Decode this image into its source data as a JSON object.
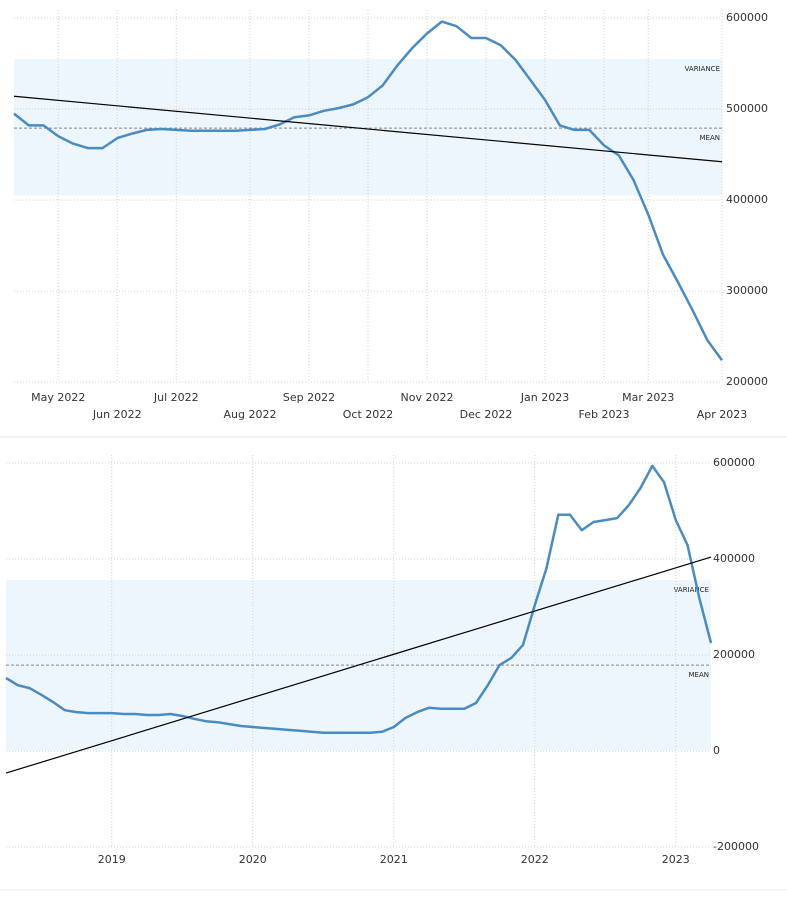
{
  "chart_data": [
    {
      "type": "line",
      "categories": [
        null,
        null,
        null,
        "May 2022",
        null,
        null,
        null,
        "Jun 2022",
        null,
        null,
        null,
        "Jul 2022",
        null,
        null,
        null,
        null,
        "Aug 2022",
        null,
        null,
        null,
        "Sep 2022",
        null,
        null,
        null,
        "Oct 2022",
        null,
        null,
        null,
        "Nov 2022",
        null,
        null,
        null,
        "Dec 2022",
        null,
        null,
        null,
        "Jan 2023",
        null,
        null,
        null,
        "Feb 2023",
        null,
        null,
        "Mar 2023",
        null,
        null,
        null,
        null,
        "Apr 2023"
      ],
      "values": [
        495000,
        482000,
        482000,
        470000,
        462000,
        457000,
        457000,
        468000,
        473000,
        477000,
        478000,
        477000,
        476000,
        476000,
        476000,
        476000,
        477000,
        478000,
        483000,
        491000,
        493000,
        498000,
        501000,
        505000,
        513000,
        526000,
        548000,
        567000,
        583000,
        596000,
        591000,
        578000,
        578000,
        570000,
        554000,
        532000,
        510000,
        482000,
        477000,
        477000,
        460000,
        449000,
        422000,
        384000,
        340000,
        310000,
        279000,
        246000,
        224000
      ],
      "color": "#4a8bc2",
      "ylim": [
        200000,
        600000
      ],
      "yticks": [
        200000,
        300000,
        400000,
        500000,
        600000
      ],
      "grid": true,
      "variance": {
        "label": "VARIANCE",
        "range": [
          405000,
          555000
        ],
        "color": "#eef6fd"
      },
      "mean": {
        "label": "MEAN",
        "value": 479000
      },
      "trend": {
        "values": [
          514000,
          442000
        ],
        "color": "#000000"
      }
    },
    {
      "type": "line",
      "categories": [
        null,
        null,
        null,
        null,
        null,
        null,
        null,
        null,
        null,
        "2019",
        null,
        null,
        null,
        null,
        null,
        null,
        null,
        null,
        null,
        null,
        null,
        "2020",
        null,
        null,
        null,
        null,
        null,
        null,
        null,
        null,
        null,
        null,
        null,
        "2021",
        null,
        null,
        null,
        null,
        null,
        null,
        null,
        null,
        null,
        null,
        null,
        "2022",
        null,
        null,
        null,
        null,
        null,
        null,
        null,
        null,
        null,
        null,
        null,
        "2023",
        null,
        null,
        null
      ],
      "values": [
        152000,
        137000,
        131000,
        117000,
        102000,
        85000,
        81000,
        79000,
        79000,
        79000,
        77000,
        77000,
        75000,
        75000,
        77000,
        73000,
        67000,
        62000,
        60000,
        56000,
        52000,
        50000,
        48000,
        46000,
        44000,
        42000,
        40000,
        38000,
        38000,
        38000,
        38000,
        38000,
        40000,
        50000,
        69000,
        81000,
        90000,
        88000,
        88000,
        88000,
        100000,
        137000,
        179000,
        194000,
        221000,
        304000,
        381000,
        492000,
        492000,
        460000,
        477000,
        481000,
        485000,
        512000,
        548000,
        594000,
        560000,
        481000,
        429000,
        319000,
        225000
      ],
      "color": "#4a8bc2",
      "ylim": [
        -200000,
        600000
      ],
      "yticks": [
        -200000,
        0,
        200000,
        400000,
        600000
      ],
      "grid": true,
      "variance": {
        "label": "VARIANCE",
        "range": [
          2000,
          356000
        ],
        "color": "#eef6fd"
      },
      "mean": {
        "label": "MEAN",
        "value": 179000
      },
      "trend": {
        "values": [
          -46000,
          404000
        ],
        "color": "#000000"
      }
    }
  ]
}
